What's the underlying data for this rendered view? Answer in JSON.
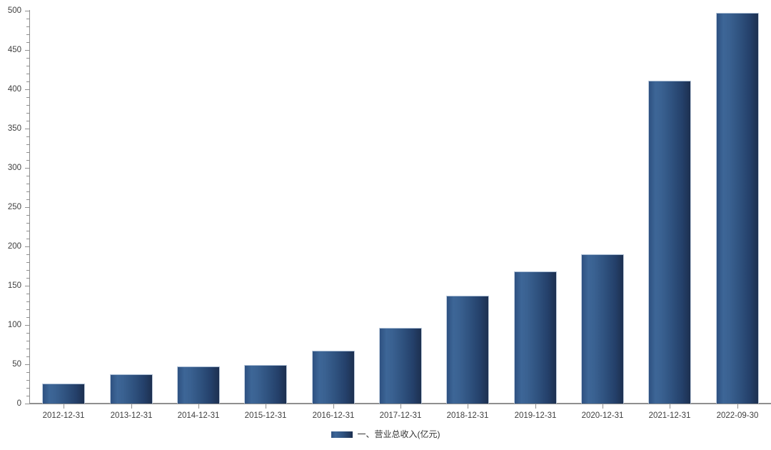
{
  "chart_data": {
    "type": "bar",
    "title": "",
    "xlabel": "",
    "ylabel": "",
    "legend": "一、营业总收入(亿元)",
    "legend_position": "bottom-center",
    "categories": [
      "2012-12-31",
      "2013-12-31",
      "2014-12-31",
      "2015-12-31",
      "2016-12-31",
      "2017-12-31",
      "2018-12-31",
      "2019-12-31",
      "2020-12-31",
      "2021-12-31",
      "2022-09-30"
    ],
    "series": [
      {
        "name": "一、营业总收入(亿元)",
        "values": [
          25,
          37,
          47,
          49,
          67,
          96,
          137,
          168,
          190,
          411,
          497
        ]
      }
    ],
    "ylim": [
      0,
      500
    ],
    "y_major_tick_step": 50,
    "y_minor_tick_step": 10,
    "grid": false,
    "colors": {
      "bar_light": "#3d6697",
      "bar_dark": "#1d3050",
      "axis": "#8f8f8f",
      "tick_label": "#3f3f3f",
      "legend_text": "#333333",
      "background": "#ffffff"
    }
  }
}
